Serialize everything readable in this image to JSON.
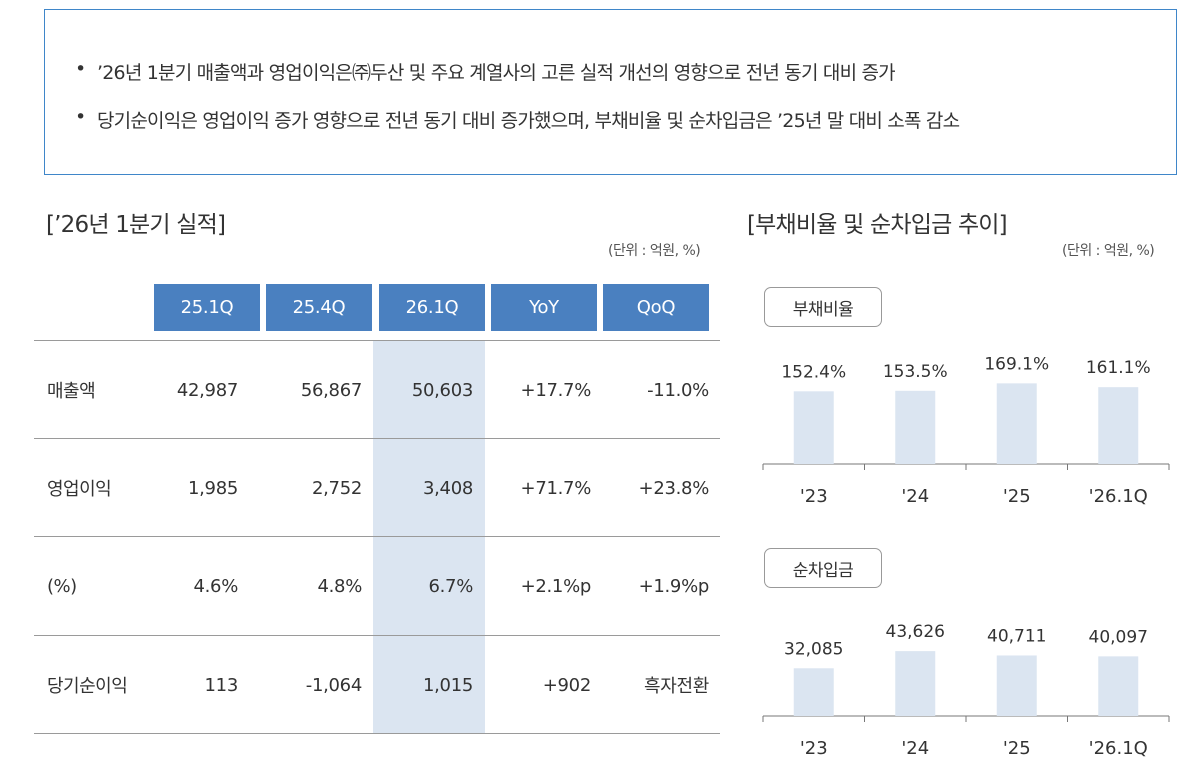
{
  "summary": {
    "bullet": "•",
    "items": [
      "’26년 1분기 매출액과 영업이익은㈜두산 및 주요 계열사의 고른 실적 개선의 영향으로 전년 동기 대비 증가",
      "당기순이익은 영업이익 증가 영향으로 전년 동기 대비 증가했으며, 부채비율 및 순차입금은 ’25년 말 대비 소폭 감소"
    ]
  },
  "left": {
    "title": "[’26년 1분기 실적]",
    "unit": "(단위 : 억원, %)"
  },
  "right": {
    "title": "[부채비율 및 순차입금 추이]",
    "unit": "(단위 : 억원, %)"
  },
  "colors": {
    "header_bg": "#4a80c0",
    "highlight": "#dbe5f1",
    "bar": "#dbe5f1",
    "border": "#3f86c9"
  },
  "chart_data": [
    {
      "type": "table",
      "columns": [
        "25.1Q",
        "25.4Q",
        "26.1Q",
        "YoY",
        "QoQ"
      ],
      "highlight_column": "26.1Q",
      "rows": [
        {
          "label": "매출액",
          "values": [
            "42,987",
            "56,867",
            "50,603",
            "+17.7%",
            "-11.0%"
          ]
        },
        {
          "label": "영업이익",
          "values": [
            "1,985",
            "2,752",
            "3,408",
            "+71.7%",
            "+23.8%"
          ]
        },
        {
          "label": "(%)",
          "values": [
            "4.6%",
            "4.8%",
            "6.7%",
            "+2.1%p",
            "+1.9%p"
          ]
        },
        {
          "label": "당기순이익",
          "values": [
            "113",
            "-1,064",
            "1,015",
            "+902",
            "흑자전환"
          ]
        }
      ]
    },
    {
      "type": "bar",
      "title": "부채비율",
      "categories": [
        "'23",
        "'24",
        "'25",
        "'26.1Q"
      ],
      "values": [
        152.4,
        153.5,
        169.1,
        161.1
      ],
      "labels": [
        "152.4%",
        "153.5%",
        "169.1%",
        "161.1%"
      ],
      "ylim": [
        0,
        260
      ]
    },
    {
      "type": "bar",
      "title": "순차입금",
      "categories": [
        "'23",
        "'24",
        "'25",
        "'26.1Q"
      ],
      "values": [
        32085,
        43626,
        40711,
        40097
      ],
      "labels": [
        "32,085",
        "43,626",
        "40,711",
        "40,097"
      ],
      "ylim": [
        0,
        78000
      ]
    }
  ]
}
